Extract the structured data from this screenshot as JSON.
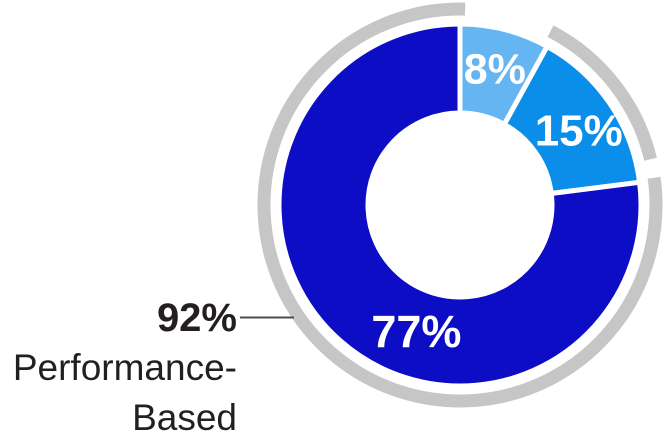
{
  "chart_data": {
    "type": "donut",
    "units": "percent",
    "slices": [
      {
        "name": "light-blue-slice",
        "label": "8%",
        "value": 8,
        "color": "#65B5F2"
      },
      {
        "name": "medium-blue-slice",
        "label": "15%",
        "value": 15,
        "color": "#0A8EE9"
      },
      {
        "name": "dark-blue-slice",
        "label": "77%",
        "value": 77,
        "color": "#0D0DC6"
      }
    ],
    "slice_label_color": "#FFFFFF",
    "separator_color": "#FFFFFF",
    "outer_ring": {
      "color": "#C6C6C6",
      "covers_percent": 92,
      "gap_over_slice": "8%"
    },
    "callout": {
      "percent_label": "92%",
      "line1": "Performance-",
      "line2": "Based",
      "text_color": "#231F20",
      "connector_color": "#4D4D4F"
    }
  }
}
